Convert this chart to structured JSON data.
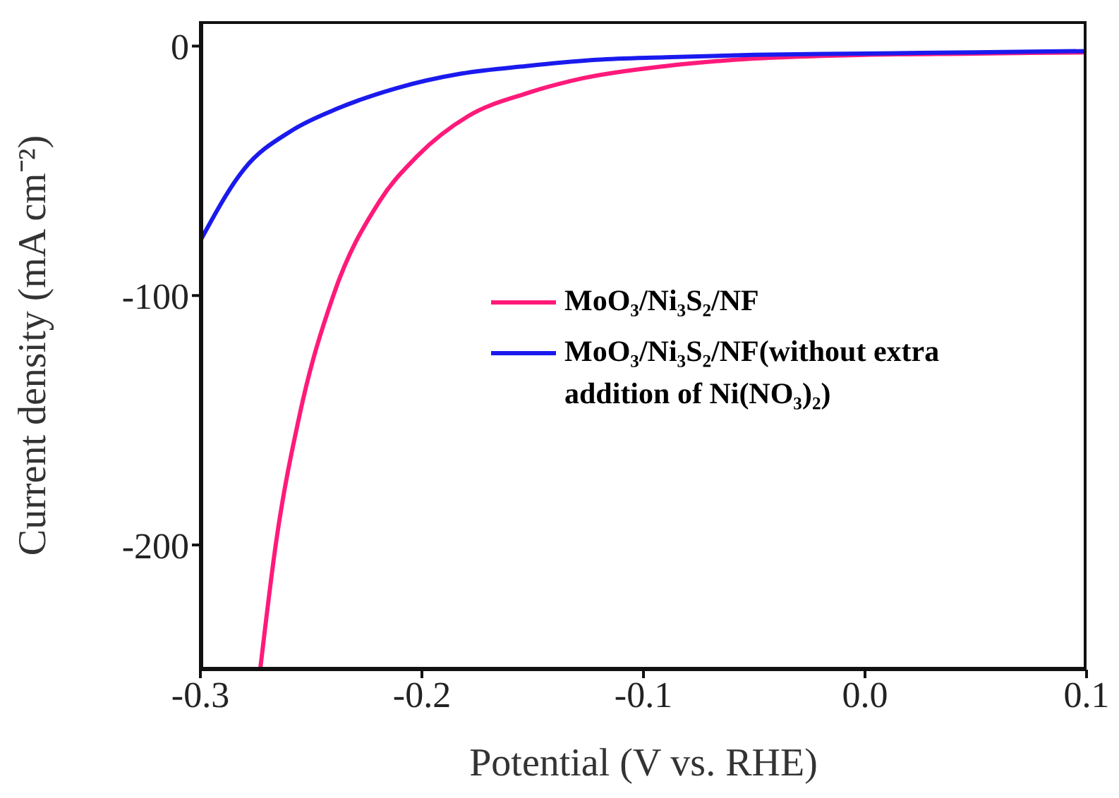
{
  "chart_data": {
    "type": "line",
    "xlabel": "Potential (V vs. RHE)",
    "ylabel": "Current density (mA cm⁻²)",
    "xlim": [
      -0.3,
      0.1
    ],
    "xticks": [
      -0.3,
      -0.2,
      -0.1,
      {
        "value": 0,
        "label": "0.0"
      },
      0.1
    ],
    "ylim": [
      -250,
      10
    ],
    "yticks": [
      -200,
      -100,
      0
    ],
    "legend": "right",
    "marker": "none",
    "line_style": "solid",
    "series": [
      {
        "name": "MoO₃/Ni₃S₂/NF",
        "color": "#ff1a7a",
        "x": [
          -0.273,
          -0.266,
          -0.255,
          -0.24,
          -0.219,
          -0.202,
          -0.179,
          -0.153,
          -0.128,
          -0.09,
          -0.05,
          0,
          0.05,
          0.1
        ],
        "values": [
          -250,
          -200,
          -147,
          -100,
          -62,
          -44,
          -28,
          -19,
          -13,
          -8,
          -5,
          -3.5,
          -3,
          -2.5
        ]
      },
      {
        "name": "MoO₃/Ni₃S₂/NF(without extra addition of Ni(NO₃)₂)",
        "color": "#1a1aee",
        "x": [
          -0.3,
          -0.28,
          -0.259,
          -0.238,
          -0.212,
          -0.182,
          -0.153,
          -0.121,
          -0.09,
          -0.05,
          0,
          0.05,
          0.1
        ],
        "values": [
          -78,
          -49,
          -34,
          -25,
          -17,
          -11,
          -8,
          -5.5,
          -4.5,
          -3.5,
          -3,
          -2.5,
          -2
        ]
      }
    ]
  }
}
